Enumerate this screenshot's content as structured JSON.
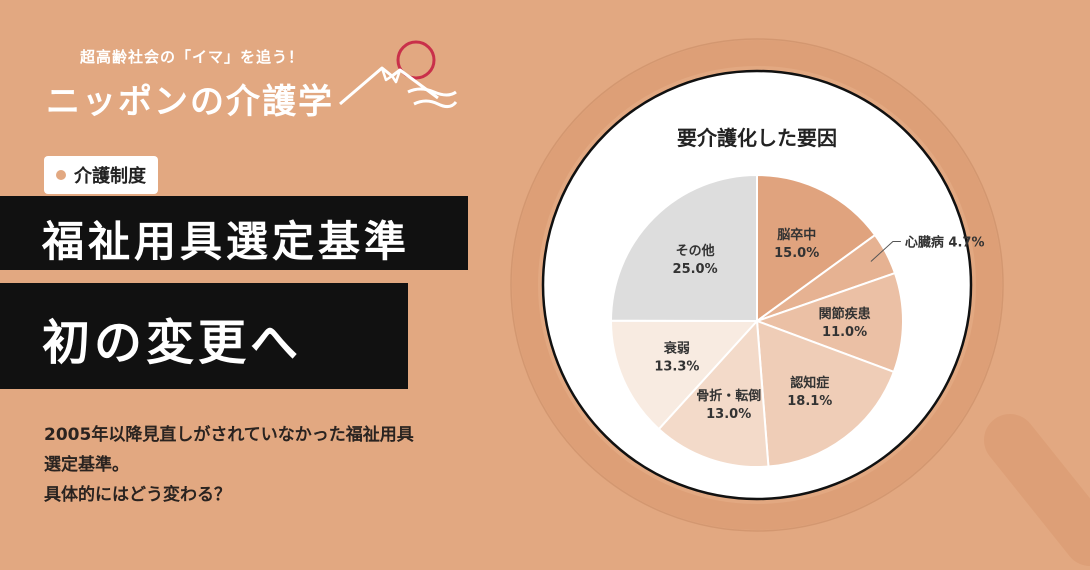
{
  "brand": {
    "subtitle": "超高齢社会の「イマ」を追う！",
    "title": "ニッポンの介護学"
  },
  "badge": {
    "label": "介護制度"
  },
  "headline": {
    "line1": "福祉用具選定基準",
    "line2": "初の変更へ"
  },
  "description": {
    "lines": [
      "2005年以降見直しがされていなかった福祉用具",
      "選定基準。",
      "具体的にはどう変わる？"
    ]
  },
  "colors": {
    "background": "#e2a881",
    "brand_red": "#c9304a",
    "headline_bg": "#111111",
    "magnifier_ring": "#dd9f77"
  },
  "chart_data": {
    "type": "pie",
    "title": "要介護化した要因",
    "start": "top",
    "direction": "clockwise",
    "slices": [
      {
        "label": "脳卒中",
        "value": 15.0,
        "value_label": "15.0%",
        "color": "#e0a37e"
      },
      {
        "label": "心臓病",
        "value": 4.7,
        "value_label": "4.7%",
        "color": "#e6b292",
        "label_outside": true
      },
      {
        "label": "関節疾患",
        "value": 11.0,
        "value_label": "11.0%",
        "color": "#ebc0a5"
      },
      {
        "label": "認知症",
        "value": 18.1,
        "value_label": "18.1%",
        "color": "#efcdb7"
      },
      {
        "label": "骨折・転倒",
        "value": 13.0,
        "value_label": "13.0%",
        "color": "#f3dac9"
      },
      {
        "label": "衰弱",
        "value": 13.3,
        "value_label": "13.3%",
        "color": "#f8ebe1"
      },
      {
        "label": "その他",
        "value": 25.0,
        "value_label": "25.0%",
        "color": "#dddddd"
      }
    ]
  }
}
